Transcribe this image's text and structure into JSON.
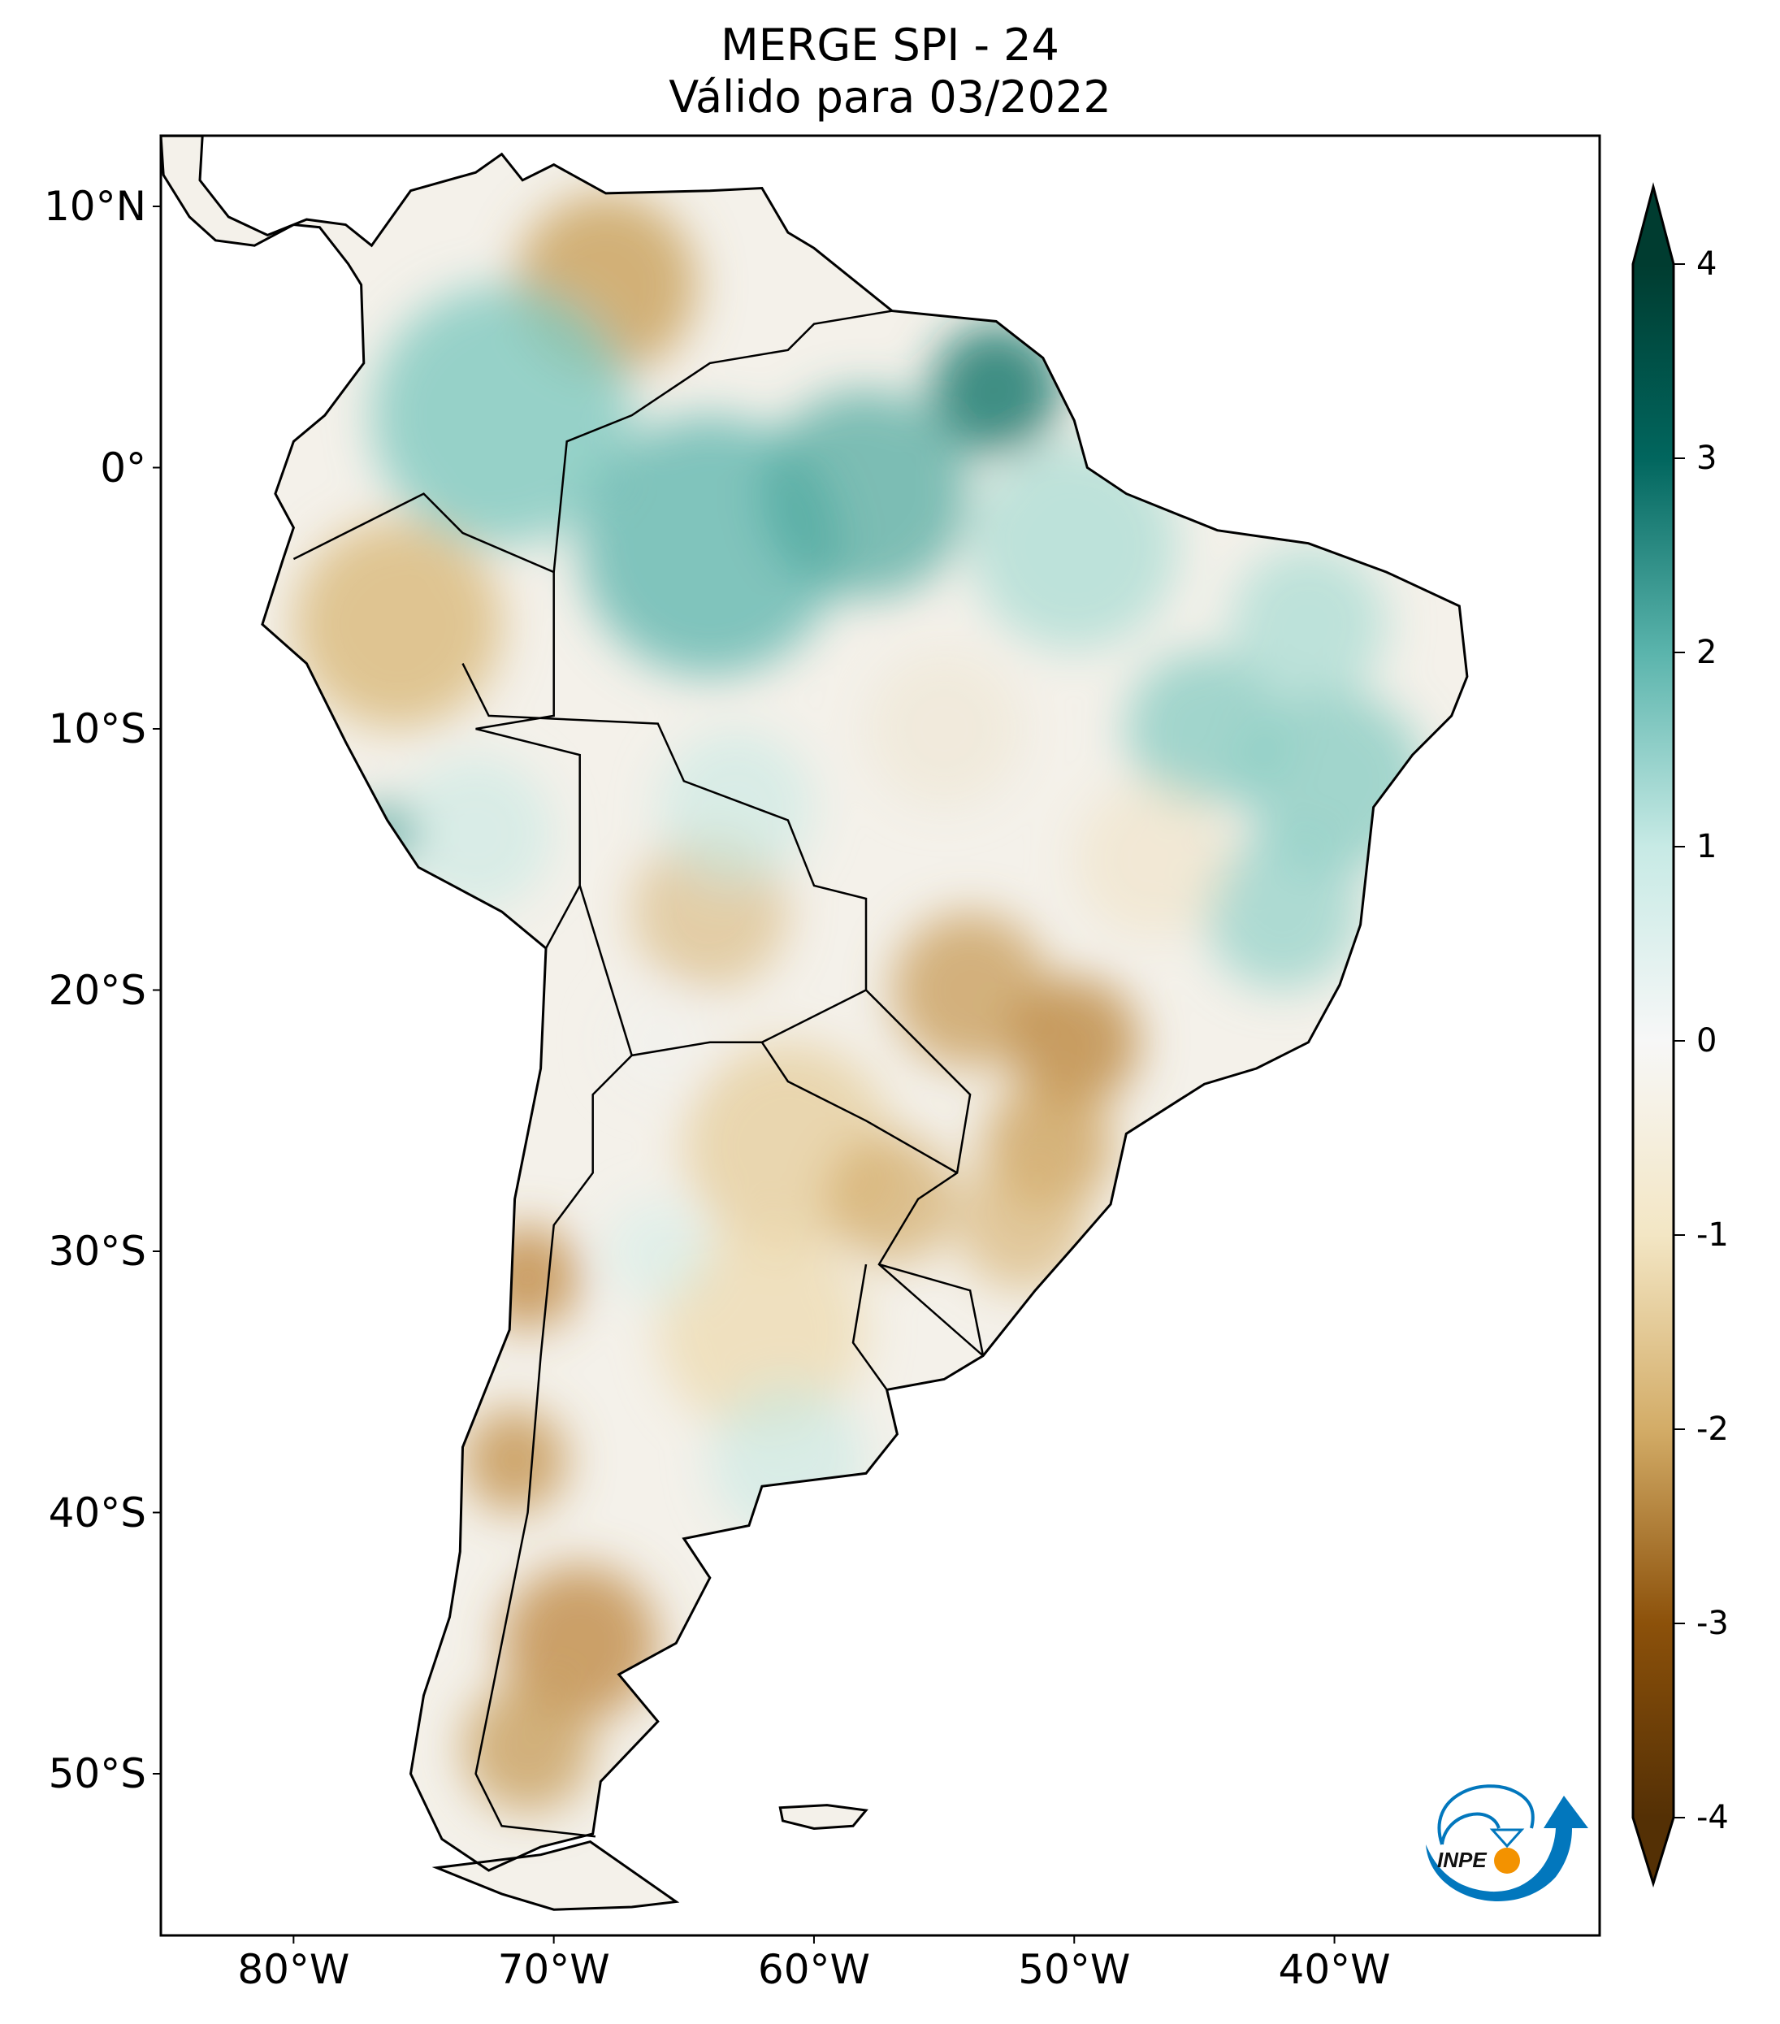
{
  "title": {
    "line1": "MERGE   SPI - 24",
    "line2": "Válido para 03/2022"
  },
  "lat_labels": [
    "10°N",
    "0°",
    "10°S",
    "20°S",
    "30°S",
    "40°S",
    "50°S"
  ],
  "lat_values": [
    10,
    0,
    -10,
    -20,
    -30,
    -40,
    -50
  ],
  "lon_labels": [
    "80°W",
    "70°W",
    "60°W",
    "50°W",
    "40°W"
  ],
  "lon_values": [
    -80,
    -70,
    -60,
    -50,
    -40
  ],
  "colorbar": {
    "ticks": [
      "4",
      "3",
      "2",
      "1",
      "0",
      "-1",
      "-2",
      "-3",
      "-4"
    ],
    "tick_values": [
      4,
      3,
      2,
      1,
      0,
      -1,
      -2,
      -3,
      -4
    ],
    "range": [
      -4,
      4
    ],
    "extend": "both",
    "stops": [
      {
        "v": -4,
        "c": "#543005"
      },
      {
        "v": -3,
        "c": "#8c510a"
      },
      {
        "v": -2,
        "c": "#d3ac67"
      },
      {
        "v": -1,
        "c": "#f3e6c4"
      },
      {
        "v": 0,
        "c": "#f7f7f7"
      },
      {
        "v": 1,
        "c": "#c7eae5"
      },
      {
        "v": 2,
        "c": "#5ab4ac"
      },
      {
        "v": 3,
        "c": "#01665e"
      },
      {
        "v": 4,
        "c": "#003c30"
      }
    ]
  },
  "logo": {
    "text": "INPE",
    "blue": "#0277bd",
    "orange": "#f39200"
  }
}
